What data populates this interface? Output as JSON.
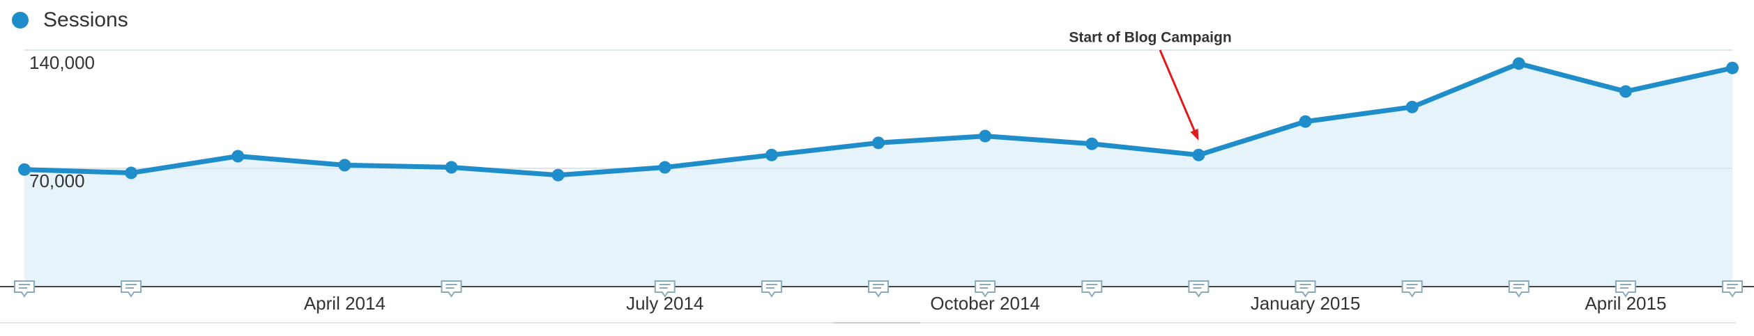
{
  "chart_data": {
    "type": "line",
    "series": [
      {
        "name": "Sessions",
        "color": "#1f8dca",
        "values": [
          69300,
          67300,
          77200,
          71900,
          70600,
          66000,
          70600,
          77900,
          85100,
          89100,
          84500,
          77900,
          97700,
          106300,
          132000,
          115500,
          129400
        ]
      }
    ],
    "categories": [
      null,
      null,
      null,
      "April 2014",
      null,
      null,
      "July 2014",
      null,
      null,
      "October 2014",
      null,
      null,
      "January 2015",
      null,
      null,
      "April 2015",
      null
    ],
    "ylim": [
      0,
      140000
    ],
    "yticks": [
      {
        "value": 70000,
        "label": "70,000"
      },
      {
        "value": 140000,
        "label": "140,000"
      }
    ],
    "grid": true,
    "area": true,
    "annotation": {
      "text": "Start of Blog Campaign",
      "index": 11,
      "color": "#e0191b"
    }
  }
}
